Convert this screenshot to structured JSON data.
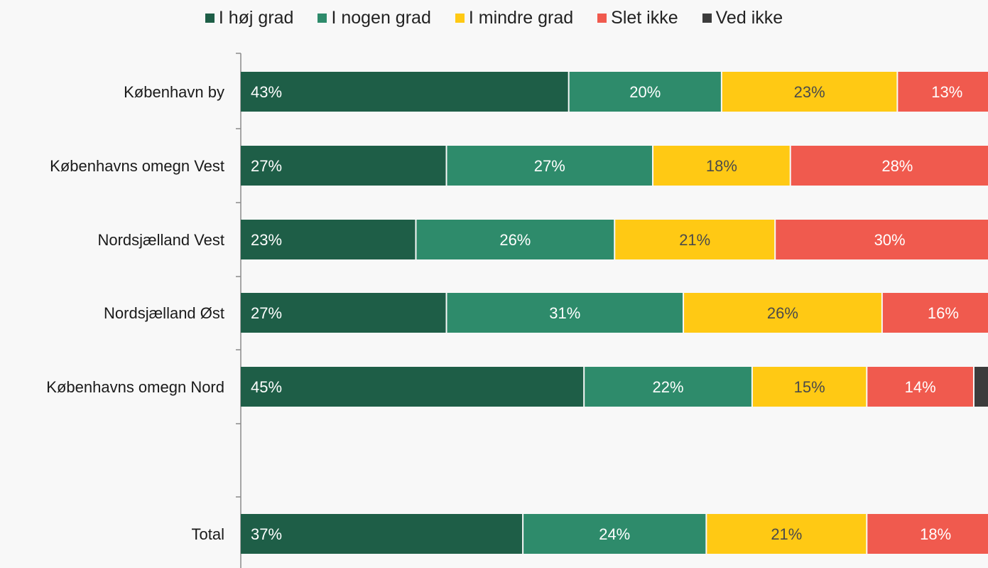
{
  "chart_data": {
    "type": "bar",
    "orientation": "horizontal",
    "stacked": true,
    "categories": [
      "København by",
      "Københavns omegn Vest",
      "Nordsjælland Vest",
      "Nordsjælland Øst",
      "Københavns omegn Nord",
      "Total"
    ],
    "series": [
      {
        "name": "I høj grad",
        "color": "#1e5e47",
        "label_color": "#ffffff",
        "values": [
          43,
          27,
          23,
          27,
          45,
          37
        ],
        "labels": [
          "43%",
          "27%",
          "23%",
          "27%",
          "45%",
          "37%"
        ]
      },
      {
        "name": "I nogen grad",
        "color": "#2e8b6b",
        "label_color": "#ffffff",
        "values": [
          20,
          27,
          26,
          31,
          22,
          24
        ],
        "labels": [
          "20%",
          "27%",
          "26%",
          "31%",
          "22%",
          "24%"
        ]
      },
      {
        "name": "I mindre grad",
        "color": "#ffc914",
        "label_color": "#4a4a4a",
        "values": [
          23,
          18,
          21,
          26,
          15,
          21
        ],
        "labels": [
          "23%",
          "18%",
          "21%",
          "26%",
          "15%",
          "21%"
        ]
      },
      {
        "name": "Slet ikke",
        "color": "#f05a4e",
        "label_color": "#ffffff",
        "values": [
          13,
          28,
          30,
          16,
          14,
          18
        ],
        "labels": [
          "13%",
          "28%",
          "30%",
          "16%",
          "14%",
          "18%"
        ]
      },
      {
        "name": "Ved ikke",
        "color": "#3c3c3c",
        "label_color": "#ffffff",
        "values": [
          1,
          0,
          0,
          0,
          4,
          0
        ],
        "labels": [
          "",
          "",
          "",
          "",
          "",
          ""
        ]
      }
    ],
    "xlim": [
      0,
      100
    ],
    "grid": false,
    "legend_position": "top"
  }
}
